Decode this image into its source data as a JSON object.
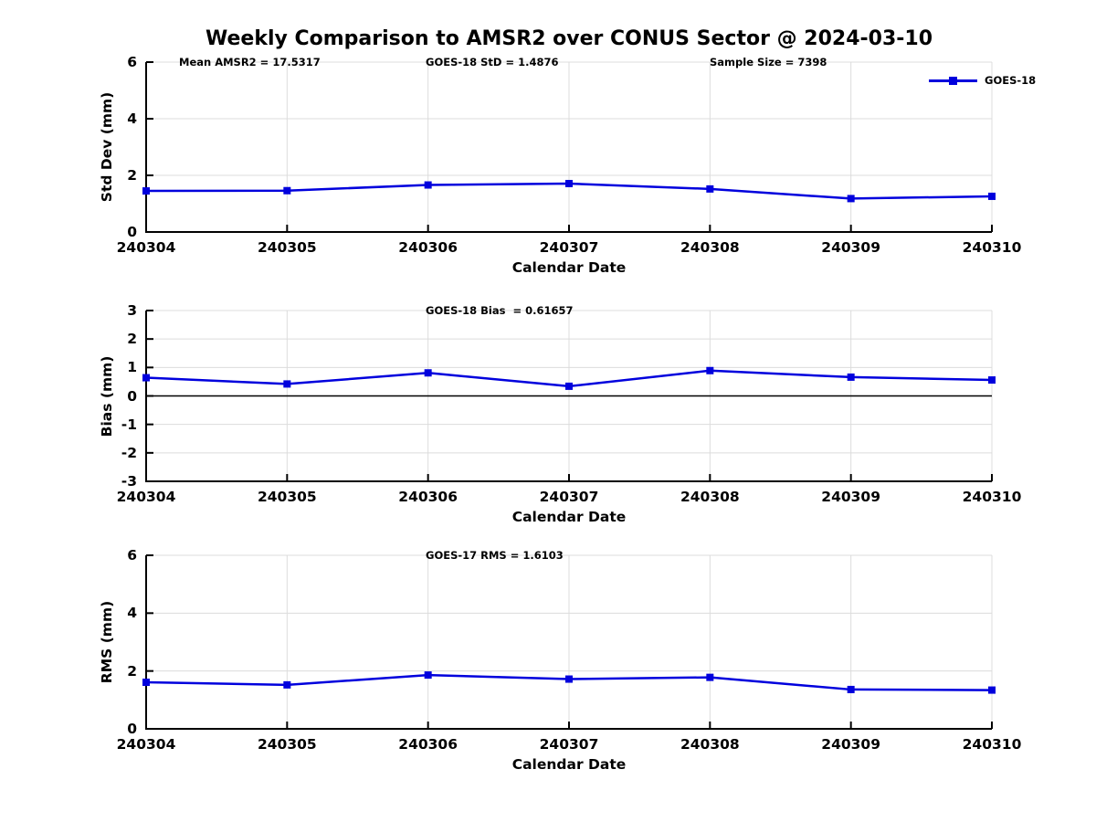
{
  "title": "Weekly Comparison to AMSR2 over CONUS Sector @ 2024-03-10",
  "colors": {
    "line": "#0000DD",
    "grid": "#DCDCDC",
    "axis": "#000000",
    "zero_line": "#000000",
    "background": "#FFFFFF",
    "text": "#000000"
  },
  "chart_data": [
    {
      "type": "line",
      "id": "std-dev",
      "annotations": [
        "Mean AMSR2 = 17.5317",
        "GOES-18 StD = 1.4876",
        "Sample Size = 7398"
      ],
      "xlabel": "Calendar Date",
      "ylabel": "Std Dev (mm)",
      "x_categories": [
        "240304",
        "240305",
        "240306",
        "240307",
        "240308",
        "240309",
        "240310"
      ],
      "ylim": [
        0,
        6
      ],
      "yticks": [
        0,
        2,
        4,
        6
      ],
      "grid": true,
      "legend": [
        "GOES-18"
      ],
      "legend_position": "upper-right-outside",
      "zero_line": false,
      "series": [
        {
          "name": "GOES-18",
          "marker": "square",
          "values": [
            1.45,
            1.46,
            1.66,
            1.71,
            1.52,
            1.18,
            1.26
          ]
        }
      ]
    },
    {
      "type": "line",
      "id": "bias",
      "annotations": [
        "GOES-18 Bias  = 0.61657"
      ],
      "xlabel": "Calendar Date",
      "ylabel": "Bias (mm)",
      "x_categories": [
        "240304",
        "240305",
        "240306",
        "240307",
        "240308",
        "240309",
        "240310"
      ],
      "ylim": [
        -3,
        3
      ],
      "yticks": [
        -3,
        -2,
        -1,
        0,
        1,
        2,
        3
      ],
      "grid": true,
      "zero_line": true,
      "series": [
        {
          "name": "GOES-18",
          "marker": "square",
          "values": [
            0.64,
            0.42,
            0.81,
            0.34,
            0.89,
            0.66,
            0.56
          ]
        }
      ]
    },
    {
      "type": "line",
      "id": "rms",
      "annotations": [
        "GOES-17 RMS = 1.6103"
      ],
      "xlabel": "Calendar Date",
      "ylabel": "RMS (mm)",
      "x_categories": [
        "240304",
        "240305",
        "240306",
        "240307",
        "240308",
        "240309",
        "240310"
      ],
      "ylim": [
        0,
        6
      ],
      "yticks": [
        0,
        2,
        4,
        6
      ],
      "grid": true,
      "zero_line": false,
      "series": [
        {
          "name": "GOES-18",
          "marker": "square",
          "values": [
            1.61,
            1.52,
            1.86,
            1.72,
            1.78,
            1.36,
            1.34
          ]
        }
      ]
    }
  ]
}
